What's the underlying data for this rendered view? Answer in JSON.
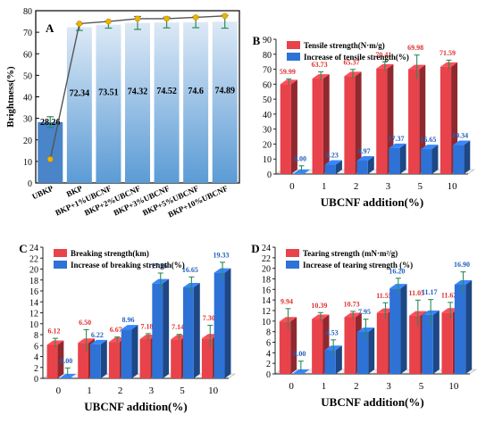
{
  "chart_data": [
    {
      "panel": "A",
      "type": "bar",
      "ylabel": "Brightness(%)",
      "ylim": [
        0,
        80
      ],
      "yticks": [
        0,
        10,
        20,
        30,
        40,
        50,
        60,
        70,
        80
      ],
      "categories": [
        "UBKP",
        "BKP",
        "BKP+1%UBCNF",
        "BKP+2%UBCNF",
        "BKP+3%UBCNF",
        "BKP+5%UBCNF",
        "BKP+10%UBCNF"
      ],
      "values": [
        28.26,
        72.34,
        73.51,
        74.32,
        74.52,
        74.6,
        74.89
      ],
      "value_labels": [
        "28.26",
        "72.34",
        "73.51",
        "74.32",
        "74.52",
        "74.6",
        "74.89"
      ],
      "errors": [
        2.5,
        1.5,
        1.6,
        3.0,
        2.5,
        2.5,
        3.0
      ],
      "trend_line": [
        11.0,
        74.0,
        75.0,
        76.3,
        76.3,
        76.9,
        77.6
      ],
      "colors": {
        "bar": "#5b9bd5",
        "bar_top": "#dce9f6",
        "first_bar": "#4a84c9",
        "line": "#555555",
        "marker": "#f0b300"
      }
    },
    {
      "panel": "B",
      "type": "bar",
      "xlabel": "UBCNF addition(%)",
      "ylabel": "",
      "ylim": [
        0,
        90
      ],
      "yticks": [
        0,
        10,
        20,
        30,
        40,
        50,
        60,
        70,
        80,
        90
      ],
      "categories": [
        "0",
        "1",
        "2",
        "3",
        "5",
        "10"
      ],
      "series": [
        {
          "name": "Tensile strength(N·m/g)",
          "values": [
            59.99,
            63.73,
            65.37,
            70.41,
            69.98,
            71.59
          ],
          "labels": [
            "59.99",
            "63.73",
            "65.37",
            "70.41",
            "69.98",
            "71.59"
          ],
          "errors": [
            2.0,
            3.0,
            3.0,
            3.0,
            8.0,
            3.0
          ],
          "color": "#e8424b"
        },
        {
          "name": "Increase of tensile strength(%)",
          "values": [
            0.0,
            6.23,
            8.97,
            17.37,
            16.65,
            19.34
          ],
          "labels": [
            "0.00",
            "6.23",
            "8.97",
            "17.37",
            "16.65",
            "19.34"
          ],
          "errors": [
            4.0,
            0.0,
            0.0,
            0.0,
            0.0,
            0.0
          ],
          "color": "#2f72d6"
        }
      ]
    },
    {
      "panel": "C",
      "type": "bar",
      "xlabel": "UBCNF addition(%)",
      "ylabel": "",
      "ylim": [
        0,
        24
      ],
      "yticks": [
        0,
        2,
        4,
        6,
        8,
        10,
        12,
        14,
        16,
        18,
        20,
        22,
        24
      ],
      "categories": [
        "0",
        "1",
        "2",
        "3",
        "5",
        "10"
      ],
      "series": [
        {
          "name": "Breaking strength(km)",
          "values": [
            6.12,
            6.5,
            6.67,
            7.18,
            7.14,
            7.3
          ],
          "labels": [
            "6.12",
            "6.50",
            "6.67",
            "7.18",
            "7.14",
            "7.30"
          ],
          "errors": [
            0.8,
            2.0,
            0.5,
            0.6,
            0.5,
            2.0
          ],
          "color": "#e8424b"
        },
        {
          "name": "Increase of breaking strength(%)",
          "values": [
            0.0,
            6.22,
            8.96,
            17.36,
            16.65,
            19.33
          ],
          "labels": [
            "0.00",
            "6.22",
            "8.96",
            "17.36",
            "16.65",
            "19.33"
          ],
          "errors": [
            1.5,
            0.0,
            0.0,
            1.5,
            1.5,
            1.5
          ],
          "color": "#2f72d6"
        }
      ]
    },
    {
      "panel": "D",
      "type": "bar",
      "xlabel": "UBCNF addition(%)",
      "ylabel": "",
      "ylim": [
        0,
        24
      ],
      "yticks": [
        0,
        2,
        4,
        6,
        8,
        10,
        12,
        14,
        16,
        18,
        20,
        22,
        24
      ],
      "categories": [
        "0",
        "1",
        "2",
        "3",
        "5",
        "10"
      ],
      "series": [
        {
          "name": "Tearing strength (mN·m²/g)",
          "values": [
            9.94,
            10.39,
            10.73,
            11.55,
            11.05,
            11.62
          ],
          "labels": [
            "9.94",
            "10.39",
            "10.73",
            "11.55",
            "11.05",
            "11.62"
          ],
          "errors": [
            2.0,
            0.8,
            0.7,
            1.5,
            2.5,
            1.5
          ],
          "color": "#e8424b"
        },
        {
          "name": "Increase of tearing strength (%)",
          "values": [
            0.0,
            4.53,
            7.95,
            16.2,
            11.17,
            16.9
          ],
          "labels": [
            "0.00",
            "4.53",
            "7.95",
            "16.20",
            "11.17",
            "16.90"
          ],
          "errors": [
            2.0,
            1.5,
            2.0,
            1.5,
            2.5,
            2.0
          ],
          "color": "#2f72d6"
        }
      ]
    }
  ]
}
